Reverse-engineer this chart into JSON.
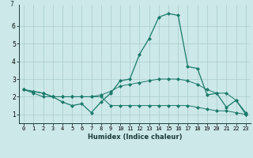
{
  "xlabel": "Humidex (Indice chaleur)",
  "x": [
    0,
    1,
    2,
    3,
    4,
    5,
    6,
    7,
    8,
    9,
    10,
    11,
    12,
    13,
    14,
    15,
    16,
    17,
    18,
    19,
    20,
    21,
    22,
    23
  ],
  "y_main": [
    2.4,
    2.3,
    2.2,
    2.0,
    1.7,
    1.5,
    1.6,
    1.1,
    1.7,
    2.2,
    2.9,
    3.0,
    4.4,
    5.3,
    6.5,
    6.7,
    6.6,
    3.7,
    3.6,
    2.1,
    2.2,
    1.4,
    1.8,
    1.1
  ],
  "y_upper": [
    2.4,
    2.3,
    2.2,
    2.0,
    2.0,
    2.0,
    2.0,
    2.0,
    2.1,
    2.3,
    2.6,
    2.7,
    2.8,
    2.9,
    3.0,
    3.0,
    3.0,
    2.9,
    2.7,
    2.4,
    2.2,
    2.2,
    1.8,
    1.0
  ],
  "y_lower": [
    2.4,
    2.2,
    2.0,
    2.0,
    2.0,
    2.0,
    2.0,
    2.0,
    2.0,
    1.5,
    1.5,
    1.5,
    1.5,
    1.5,
    1.5,
    1.5,
    1.5,
    1.5,
    1.4,
    1.3,
    1.2,
    1.2,
    1.1,
    1.0
  ],
  "line_color": "#1a7a6a",
  "bg_color": "#cce8e8",
  "grid_color": "#aacccc",
  "ylim": [
    0.5,
    7.2
  ],
  "xlim": [
    -0.5,
    23.5
  ]
}
